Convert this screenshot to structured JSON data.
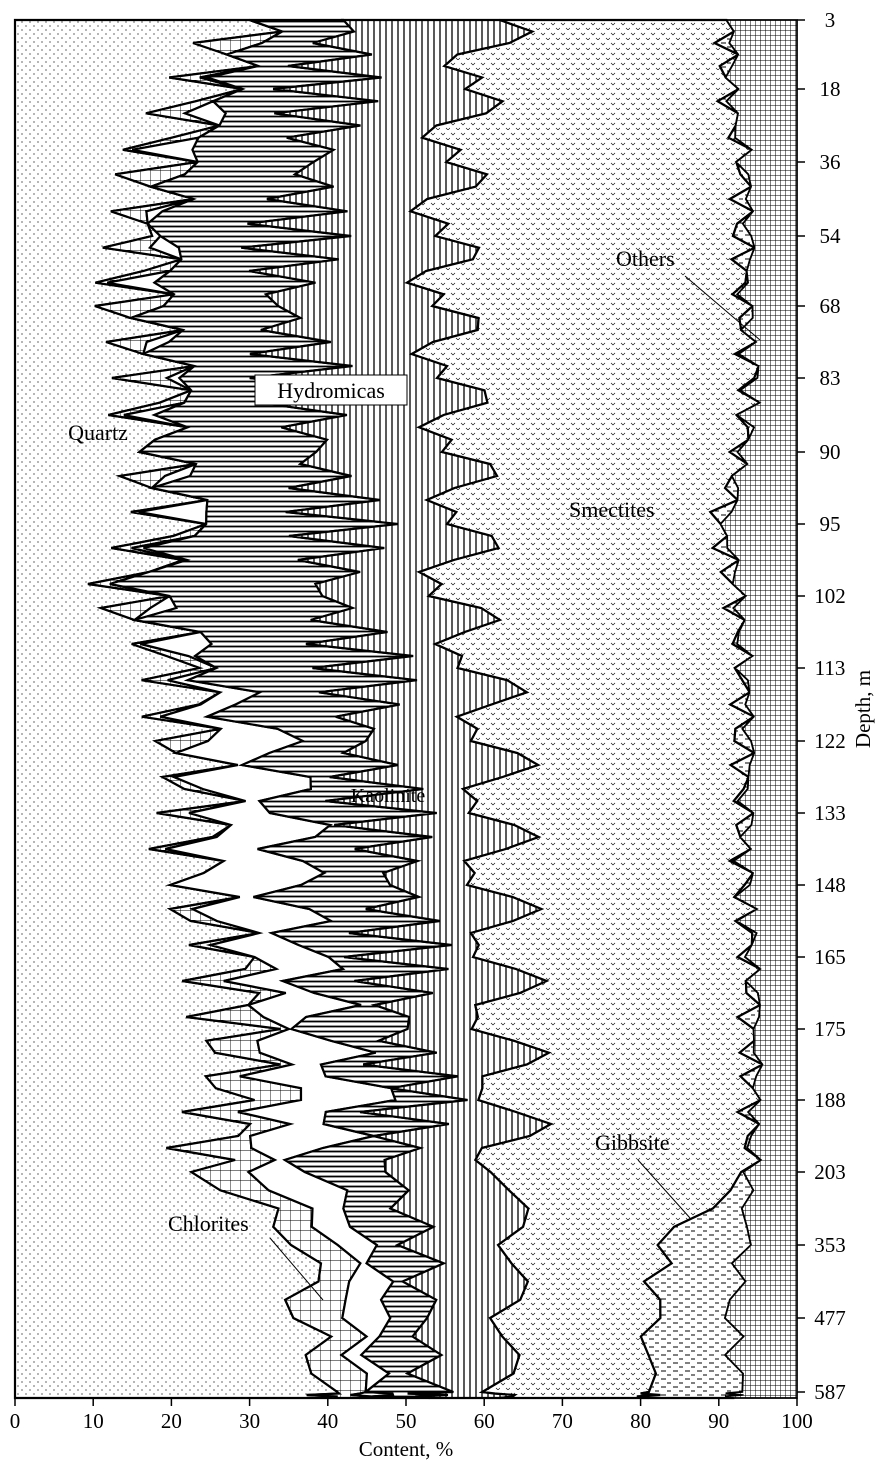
{
  "chart_data": {
    "type": "area",
    "xlabel": "Content, %",
    "ylabel": "Depth, m",
    "xlim": [
      0,
      100
    ],
    "x_ticks": [
      0,
      10,
      20,
      30,
      40,
      50,
      60,
      70,
      80,
      90,
      100
    ],
    "depth_ticks": [
      "3",
      "18",
      "36",
      "54",
      "68",
      "83",
      "90",
      "95",
      "102",
      "113",
      "122",
      "133",
      "148",
      "165",
      "175",
      "188",
      "203",
      "353",
      "477",
      "587"
    ],
    "grid": false,
    "layers": [
      {
        "name": "Quartz",
        "pattern": "dots"
      },
      {
        "name": "Chlorites",
        "pattern": "grid"
      },
      {
        "name": "Kaolinite",
        "pattern": "blank"
      },
      {
        "name": "Hydromicas",
        "pattern": "horizontal-hatch"
      },
      {
        "name": "Hydromicas",
        "pattern": "vertical-hatch"
      },
      {
        "name": "Smectites",
        "pattern": "crosses"
      },
      {
        "name": "Gibbsite",
        "pattern": "dashes"
      },
      {
        "name": "Others",
        "pattern": "fine-grid"
      }
    ],
    "samples": [
      {
        "depth_index": 0,
        "boundaries": [
          30,
          30,
          30,
          42,
          62,
          91,
          91
        ]
      },
      {
        "depth_index": 1,
        "boundaries": [
          24,
          24,
          24,
          40,
          58,
          91,
          91
        ]
      },
      {
        "depth_index": 2,
        "boundaries": [
          18,
          18,
          18,
          38,
          56,
          93,
          93
        ]
      },
      {
        "depth_index": 3,
        "boundaries": [
          17,
          17,
          17,
          36,
          55,
          93,
          93
        ]
      },
      {
        "depth_index": 4,
        "boundaries": [
          15,
          15,
          15,
          34,
          55,
          93,
          93
        ]
      },
      {
        "depth_index": 5,
        "boundaries": [
          18,
          18,
          18,
          37,
          56,
          94,
          94
        ]
      },
      {
        "depth_index": 6,
        "boundaries": [
          17,
          17,
          17,
          38,
          57,
          93,
          93
        ]
      },
      {
        "depth_index": 7,
        "boundaries": [
          20,
          20,
          20,
          42,
          58,
          90,
          90
        ]
      },
      {
        "depth_index": 8,
        "boundaries": [
          14,
          14,
          14,
          40,
          56,
          92,
          92
        ]
      },
      {
        "depth_index": 9,
        "boundaries": [
          22,
          22,
          24,
          45,
          60,
          93,
          93
        ]
      },
      {
        "depth_index": 10,
        "boundaries": [
          22,
          22,
          32,
          44,
          62,
          93,
          93
        ]
      },
      {
        "depth_index": 11,
        "boundaries": [
          24,
          24,
          37,
          47,
          62,
          93,
          93
        ]
      },
      {
        "depth_index": 12,
        "boundaries": [
          22,
          22,
          35,
          49,
          62,
          93,
          93
        ]
      },
      {
        "depth_index": 13,
        "boundaries": [
          27,
          30,
          38,
          49,
          63,
          94,
          94
        ]
      },
      {
        "depth_index": 14,
        "boundaries": [
          28,
          32,
          40,
          49,
          63,
          94,
          94
        ]
      },
      {
        "depth_index": 15,
        "boundaries": [
          28,
          33,
          44,
          51,
          64,
          94,
          94
        ]
      },
      {
        "depth_index": 16,
        "boundaries": [
          24,
          30,
          38,
          48,
          63,
          94,
          94
        ]
      },
      {
        "depth_index": 17,
        "boundaries": [
          38,
          43,
          47,
          52,
          64,
          83,
          93
        ]
      },
      {
        "depth_index": 18,
        "boundaries": [
          37,
          43,
          46,
          52,
          63,
          81,
          92
        ]
      },
      {
        "depth_index": 19,
        "boundaries": [
          40,
          44,
          47,
          53,
          62,
          81,
          92
        ]
      }
    ],
    "annotations": [
      "Quartz",
      "Hydromicas",
      "Kaolinite",
      "Chlorites",
      "Smectites",
      "Gibbsite",
      "Others"
    ]
  }
}
